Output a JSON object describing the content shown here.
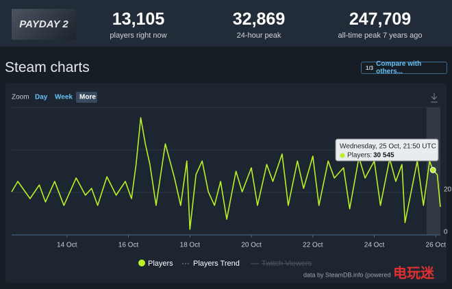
{
  "header": {
    "game_logo": "PAYDAY 2",
    "stats": [
      {
        "value": "13,105",
        "label": "players right now"
      },
      {
        "value": "32,869",
        "label": "24-hour peak"
      },
      {
        "value": "247,709",
        "label": "all-time peak 7 years ago"
      }
    ]
  },
  "section": {
    "title": "Steam charts",
    "compare_icon": "1/3",
    "compare_button": "Compare with others..."
  },
  "zoom": {
    "label": "Zoom",
    "options": [
      "Day",
      "Week",
      "More"
    ]
  },
  "tooltip": {
    "date": "Wednesday, 25 Oct, 21:50 UTC",
    "series": "Players:",
    "value": "30 545"
  },
  "legend_extra": [
    "Players Trend",
    "Twitch Viewers"
  ],
  "credit": "data by SteamDB.info (powered",
  "watermark": "电玩迷",
  "chart_data": {
    "type": "line",
    "x": [
      12.2,
      12.4,
      12.8,
      13.1,
      13.3,
      13.6,
      13.9,
      14.3,
      14.6,
      14.8,
      15.0,
      15.3,
      15.6,
      15.9,
      16.1,
      16.25,
      16.4,
      16.55,
      16.7,
      16.9,
      17.2,
      17.5,
      17.7,
      17.9,
      18.0,
      18.2,
      18.4,
      18.6,
      18.8,
      19.0,
      19.2,
      19.5,
      19.7,
      20.0,
      20.2,
      20.5,
      20.7,
      21.0,
      21.2,
      21.5,
      21.7,
      22.0,
      22.2,
      22.5,
      22.7,
      23.0,
      23.2,
      23.5,
      23.7,
      24.0,
      24.2,
      24.5,
      24.7,
      24.9,
      25.0,
      25.4,
      25.6,
      25.8,
      25.91,
      26.05,
      26.15
    ],
    "series": [
      {
        "name": "Players",
        "color": "#b9f227",
        "values": [
          20300,
          25200,
          17100,
          23500,
          15500,
          25200,
          13900,
          26800,
          18700,
          21900,
          13900,
          27400,
          18700,
          25200,
          17100,
          33200,
          55200,
          42900,
          33200,
          13900,
          42900,
          26800,
          13900,
          34800,
          2600,
          28400,
          34800,
          20300,
          13900,
          25200,
          7400,
          30000,
          20300,
          31600,
          13900,
          33200,
          25200,
          38100,
          13900,
          34800,
          21900,
          37100,
          13900,
          34800,
          26800,
          31600,
          12300,
          36500,
          26800,
          34800,
          13900,
          35800,
          25200,
          33200,
          5800,
          34800,
          13900,
          34800,
          30545,
          28400,
          13200
        ]
      }
    ],
    "xlim": [
      12.2,
      26.15
    ],
    "xticks": [
      {
        "value": 14,
        "label": "14 Oct"
      },
      {
        "value": 16,
        "label": "16 Oct"
      },
      {
        "value": 18,
        "label": "18 Oct"
      },
      {
        "value": 20,
        "label": "20 Oct"
      },
      {
        "value": 22,
        "label": "22 Oct"
      },
      {
        "value": 24,
        "label": "24 Oct"
      },
      {
        "value": 26,
        "label": "26 Oct"
      }
    ],
    "ylim": [
      0,
      60000
    ],
    "yticks": [
      0,
      {
        "value": 20000,
        "label": "20"
      },
      {
        "value": 40000,
        "label": null
      },
      {
        "value": 60000,
        "label": null
      }
    ],
    "grid": true
  }
}
